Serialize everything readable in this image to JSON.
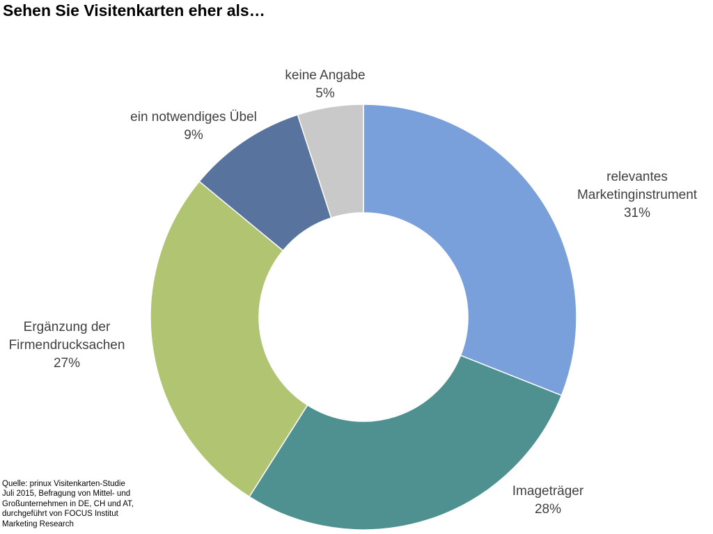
{
  "title": "Sehen Sie Visitenkarten eher als…",
  "source": "Quelle: prinux Visitenkarten-Studie\nJuli 2015, Befragung von Mittel- und\nGroßunternehmen in DE, CH und AT,\ndurchgeführt von FOCUS Institut\nMarketing Research",
  "chart_data": {
    "type": "pie",
    "style": "donut",
    "title": "Sehen Sie Visitenkarten eher als…",
    "slices": [
      {
        "label": "relevantes Marketinginstrument",
        "label_lines": [
          "relevantes",
          "Marketinginstrument"
        ],
        "value": 31,
        "value_label": "31%",
        "color": "#7aa0dc"
      },
      {
        "label": "Imageträger",
        "label_lines": [
          "Imageträger"
        ],
        "value": 28,
        "value_label": "28%",
        "color": "#4f9190"
      },
      {
        "label": "Ergänzung der Firmendrucksachen",
        "label_lines": [
          "Ergänzung der",
          "Firmendrucksachen"
        ],
        "value": 27,
        "value_label": "27%",
        "color": "#b0c471"
      },
      {
        "label": "ein notwendiges Übel",
        "label_lines": [
          "ein notwendiges Übel"
        ],
        "value": 9,
        "value_label": "9%",
        "color": "#58739e"
      },
      {
        "label": "keine Angabe",
        "label_lines": [
          "keine Angabe"
        ],
        "value": 5,
        "value_label": "5%",
        "color": "#c9c9c9"
      }
    ],
    "start": "12 o'clock",
    "direction": "clockwise",
    "legend": "none"
  }
}
